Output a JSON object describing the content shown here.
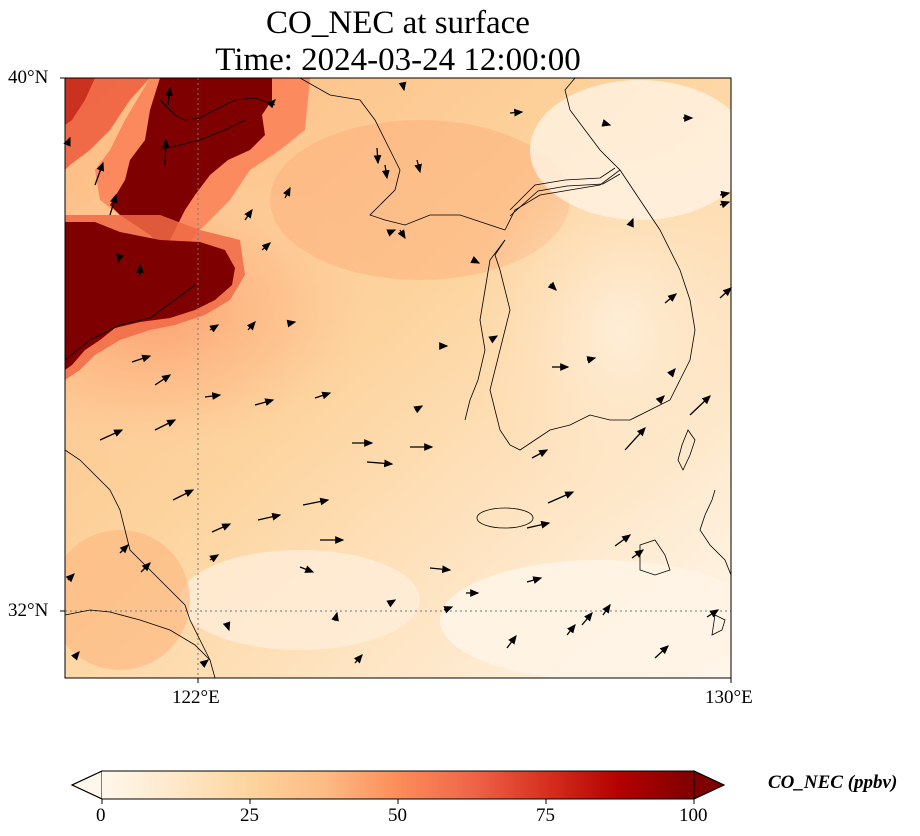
{
  "title": {
    "line1": "CO_NEC at surface",
    "line2": "Time: 2024-03-24 12:00:00"
  },
  "axes": {
    "lat_labels": [
      "40°N",
      "32°N"
    ],
    "lon_labels": [
      "122°E",
      "130°E"
    ],
    "lat_range": [
      31,
      40
    ],
    "lon_range": [
      120,
      130
    ],
    "gridlines": "dotted at 122°E and 32°N"
  },
  "colorbar": {
    "label": "CO_NEC (ppbv)",
    "ticks": [
      "0",
      "25",
      "50",
      "75",
      "100"
    ],
    "range": [
      0,
      100
    ],
    "colormap": "OrRd",
    "stops": [
      "#fff7ec",
      "#fee8c8",
      "#fdd49e",
      "#fdbb84",
      "#fc8d59",
      "#ef6548",
      "#d7301f",
      "#b30000",
      "#7f0000"
    ],
    "extend": "both"
  },
  "field": {
    "description_values": "high CO (>100 ppbv) over northwest corner and inland China; moderate 35-55 ppbv over Yellow Sea; low values near Korea and south"
  },
  "wind_vectors": "black arrows showing prevailing westerly flow"
}
